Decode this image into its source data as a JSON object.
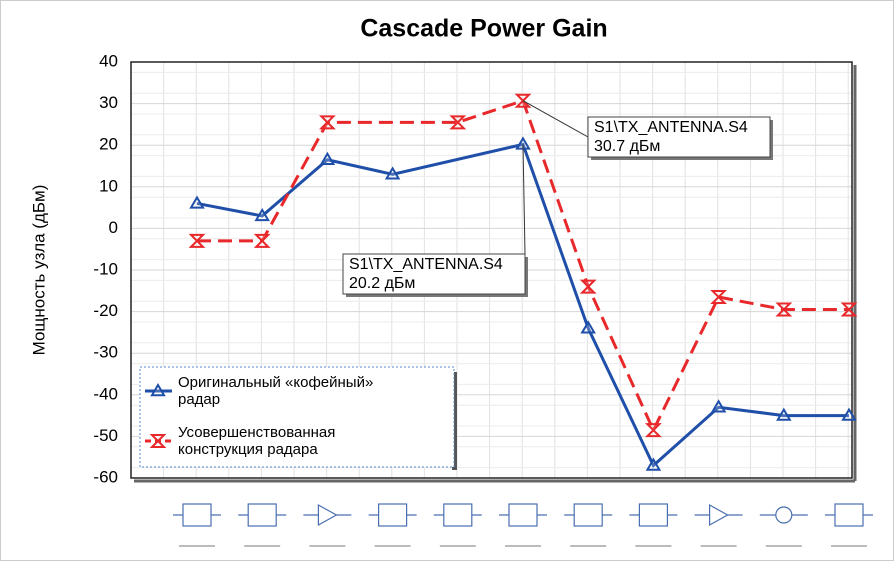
{
  "chart_data": {
    "type": "line",
    "title": "Cascade Power Gain",
    "y_label": "Мощность узла (дБм)",
    "ylim": [
      -60,
      40
    ],
    "yticks": [
      -60,
      -50,
      -40,
      -30,
      -20,
      -10,
      0,
      10,
      20,
      30,
      40
    ],
    "xlim": [
      0,
      12
    ],
    "grid": true,
    "series": [
      {
        "name": "Оригинальный «кофейный» радар",
        "color": "#1f4fa8",
        "marker": "triangle",
        "x": [
          1,
          2,
          3,
          4,
          6,
          7,
          8,
          9,
          10,
          11
        ],
        "values": [
          6,
          3,
          16.5,
          13,
          20.2,
          -24,
          -57,
          -43,
          -45,
          -45
        ]
      },
      {
        "name": "Усовершенствованная конструкция радара",
        "color": "#e8282a",
        "marker": "hourglass",
        "dash": true,
        "x": [
          1,
          2,
          3,
          5,
          6,
          7,
          8,
          9,
          10,
          11
        ],
        "values": [
          -3,
          -3,
          25.5,
          25.5,
          30.7,
          -14,
          -48.5,
          -16.5,
          -19.5,
          -19.5
        ]
      }
    ],
    "annotations": [
      {
        "series": 1,
        "index": 4,
        "lines": [
          "S1\\TX_ANTENNA.S4",
          "30.7 дБм"
        ]
      },
      {
        "series": 0,
        "index": 4,
        "lines": [
          "S1\\TX_ANTENNA.S4",
          "20.2 дБм"
        ]
      }
    ]
  }
}
